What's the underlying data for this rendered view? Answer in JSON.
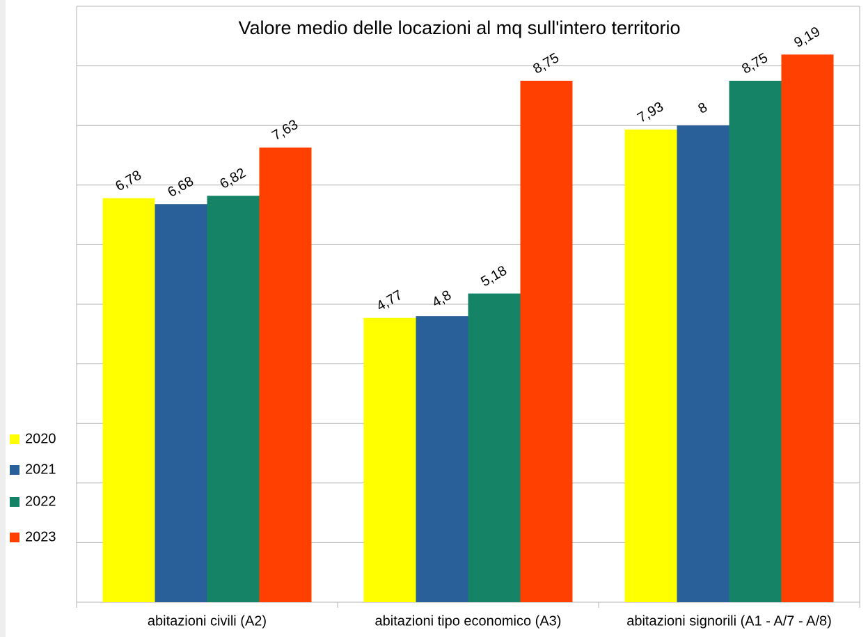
{
  "chart_data": {
    "type": "bar",
    "title": "Valore medio delle locazioni al mq sull'intero territorio",
    "categories": [
      "abitazioni civili (A2)",
      "abitazioni tipo economico (A3)",
      "abitazioni signorili (A1 - A/7 - A/8)"
    ],
    "series": [
      {
        "name": "2020",
        "color": "#ffff00",
        "values": [
          6.78,
          4.77,
          7.93
        ],
        "value_labels": [
          "6,78",
          "4,77",
          "7,93"
        ]
      },
      {
        "name": "2021",
        "color": "#2a6099",
        "values": [
          6.68,
          4.8,
          8
        ],
        "value_labels": [
          "6,68",
          "4,8",
          "8"
        ]
      },
      {
        "name": "2022",
        "color": "#158466",
        "values": [
          6.82,
          5.18,
          8.75
        ],
        "value_labels": [
          "6,82",
          "5,18",
          "8,75"
        ]
      },
      {
        "name": "2023",
        "color": "#ff4000",
        "values": [
          7.63,
          8.75,
          9.19
        ],
        "value_labels": [
          "7,63",
          "8,75",
          "9,19"
        ]
      }
    ],
    "ylim": [
      0,
      10
    ],
    "yticks": [
      0,
      1,
      2,
      3,
      4,
      5,
      6,
      7,
      8,
      9,
      10
    ],
    "ytick_labels": false,
    "grid": true,
    "legend": "left"
  }
}
